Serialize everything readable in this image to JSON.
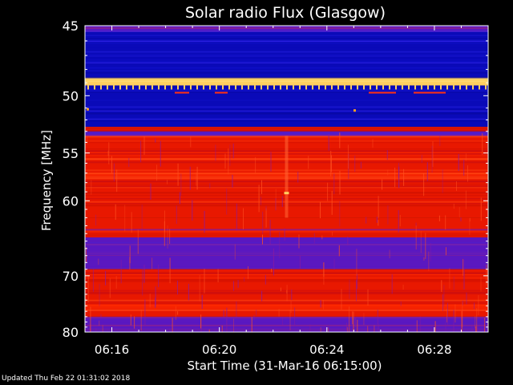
{
  "chart_data": {
    "type": "heatmap",
    "title": "Solar radio Flux (Glasgow)",
    "xlabel": "Start Time (31-Mar-16 06:15:00)",
    "ylabel": "Frequency [MHz]",
    "x_ticks": [
      "06:16",
      "06:20",
      "06:24",
      "06:28"
    ],
    "x_tick_minutes": [
      1,
      5,
      9,
      13
    ],
    "xlim_minutes": [
      0,
      15
    ],
    "y_ticks": [
      45,
      50,
      55,
      60,
      70,
      80
    ],
    "ylim": [
      45,
      80
    ],
    "y_scale": "reciprocal",
    "colors": {
      "background": "#000000",
      "low": "#0a0ab0",
      "mid": "#5a14c8",
      "high": "#ff2a00",
      "peak": "#ffd060"
    },
    "bands": [
      {
        "f0": 45.0,
        "f1": 45.4,
        "level": "mid"
      },
      {
        "f0": 45.4,
        "f1": 48.6,
        "level": "low"
      },
      {
        "f0": 48.6,
        "f1": 49.2,
        "level": "peak"
      },
      {
        "f0": 49.2,
        "f1": 52.6,
        "level": "low"
      },
      {
        "f0": 52.6,
        "f1": 53.0,
        "level": "high"
      },
      {
        "f0": 53.0,
        "f1": 53.4,
        "level": "mid"
      },
      {
        "f0": 53.4,
        "f1": 62.0,
        "level": "high"
      },
      {
        "f0": 62.0,
        "f1": 64.5,
        "level": "high-mixed"
      },
      {
        "f0": 64.5,
        "f1": 69.0,
        "level": "mid"
      },
      {
        "f0": 69.0,
        "f1": 77.0,
        "level": "high"
      },
      {
        "f0": 77.0,
        "f1": 80.0,
        "level": "mid"
      }
    ]
  },
  "footer": {
    "updated": "Updated Thu Feb 22 01:31:02 2018"
  }
}
